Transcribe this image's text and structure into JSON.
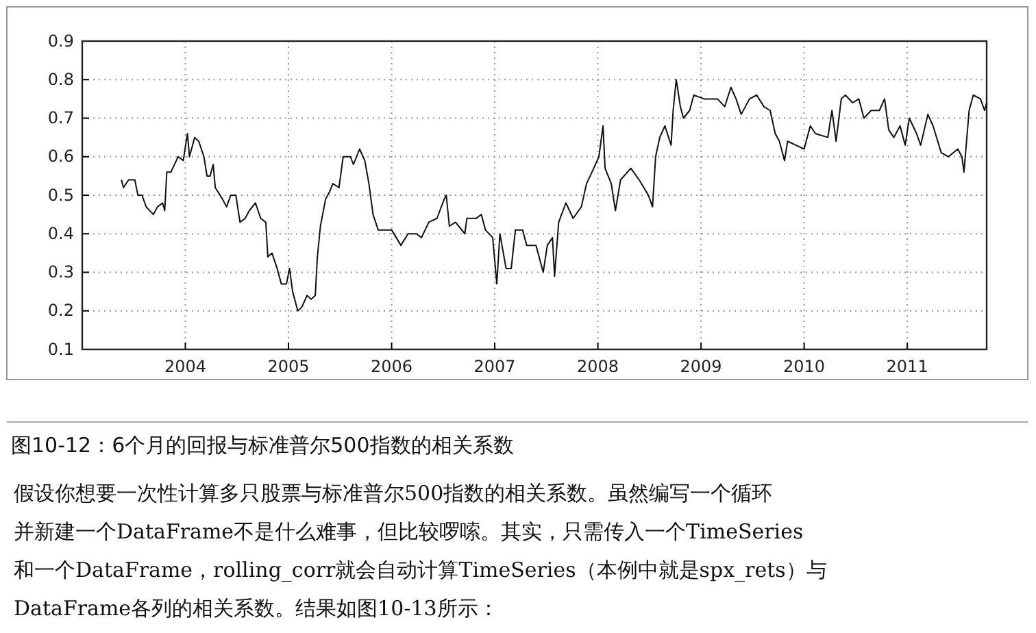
{
  "chart_data": {
    "type": "line",
    "x": [
      2003.38,
      2003.4,
      2003.45,
      2003.51,
      2003.54,
      2003.58,
      2003.62,
      2003.69,
      2003.73,
      2003.78,
      2003.8,
      2003.82,
      2003.86,
      2003.93,
      2003.98,
      2004.02,
      2004.04,
      2004.09,
      2004.13,
      2004.18,
      2004.21,
      2004.24,
      2004.27,
      2004.29,
      2004.36,
      2004.4,
      2004.44,
      2004.49,
      2004.53,
      2004.58,
      2004.62,
      2004.68,
      2004.73,
      2004.78,
      2004.8,
      2004.84,
      2004.89,
      2004.93,
      2004.98,
      2005.01,
      2005.04,
      2005.09,
      2005.13,
      2005.18,
      2005.22,
      2005.26,
      2005.28,
      2005.31,
      2005.36,
      2005.4,
      2005.43,
      2005.49,
      2005.53,
      2005.6,
      2005.63,
      2005.69,
      2005.74,
      2005.78,
      2005.82,
      2005.87,
      2006.0,
      2006.09,
      2006.16,
      2006.24,
      2006.29,
      2006.36,
      2006.44,
      2006.51,
      2006.53,
      2006.56,
      2006.62,
      2006.71,
      2006.73,
      2006.82,
      2006.87,
      2006.91,
      2006.98,
      2007.02,
      2007.05,
      2007.11,
      2007.16,
      2007.2,
      2007.27,
      2007.31,
      2007.4,
      2007.47,
      2007.51,
      2007.56,
      2007.58,
      2007.62,
      2007.69,
      2007.76,
      2007.84,
      2007.89,
      2007.96,
      2008.01,
      2008.05,
      2008.07,
      2008.13,
      2008.17,
      2008.22,
      2008.32,
      2008.4,
      2008.49,
      2008.53,
      2008.56,
      2008.6,
      2008.65,
      2008.71,
      2008.73,
      2008.76,
      2008.8,
      2008.83,
      2008.89,
      2008.93,
      2009.03,
      2009.16,
      2009.23,
      2009.29,
      2009.34,
      2009.39,
      2009.47,
      2009.54,
      2009.61,
      2009.67,
      2009.72,
      2009.76,
      2009.81,
      2009.84,
      2009.92,
      2010.0,
      2010.06,
      2010.11,
      2010.23,
      2010.27,
      2010.31,
      2010.36,
      2010.4,
      2010.47,
      2010.53,
      2010.58,
      2010.65,
      2010.73,
      2010.78,
      2010.82,
      2010.87,
      2010.93,
      2010.98,
      2011.02,
      2011.09,
      2011.13,
      2011.2,
      2011.25,
      2011.33,
      2011.4,
      2011.49,
      2011.53,
      2011.55,
      2011.6,
      2011.64,
      2011.71,
      2011.75,
      2011.77
    ],
    "series": [
      {
        "color": "#111111",
        "values": [
          0.54,
          0.52,
          0.54,
          0.54,
          0.5,
          0.5,
          0.47,
          0.45,
          0.47,
          0.48,
          0.46,
          0.56,
          0.56,
          0.6,
          0.59,
          0.66,
          0.6,
          0.65,
          0.64,
          0.6,
          0.55,
          0.55,
          0.58,
          0.52,
          0.49,
          0.47,
          0.5,
          0.5,
          0.43,
          0.44,
          0.46,
          0.48,
          0.44,
          0.43,
          0.34,
          0.35,
          0.31,
          0.27,
          0.27,
          0.31,
          0.25,
          0.2,
          0.21,
          0.24,
          0.23,
          0.24,
          0.34,
          0.42,
          0.49,
          0.51,
          0.53,
          0.52,
          0.6,
          0.6,
          0.58,
          0.62,
          0.59,
          0.53,
          0.45,
          0.41,
          0.41,
          0.37,
          0.4,
          0.4,
          0.39,
          0.43,
          0.44,
          0.49,
          0.5,
          0.42,
          0.43,
          0.4,
          0.44,
          0.44,
          0.45,
          0.41,
          0.39,
          0.27,
          0.4,
          0.31,
          0.31,
          0.41,
          0.41,
          0.37,
          0.37,
          0.3,
          0.37,
          0.39,
          0.29,
          0.43,
          0.48,
          0.44,
          0.47,
          0.53,
          0.57,
          0.6,
          0.68,
          0.57,
          0.53,
          0.46,
          0.54,
          0.57,
          0.54,
          0.5,
          0.47,
          0.6,
          0.65,
          0.68,
          0.63,
          0.72,
          0.8,
          0.73,
          0.7,
          0.72,
          0.76,
          0.75,
          0.75,
          0.73,
          0.78,
          0.75,
          0.71,
          0.75,
          0.76,
          0.73,
          0.72,
          0.66,
          0.64,
          0.59,
          0.64,
          0.63,
          0.62,
          0.68,
          0.66,
          0.65,
          0.72,
          0.64,
          0.75,
          0.76,
          0.74,
          0.75,
          0.7,
          0.72,
          0.72,
          0.75,
          0.67,
          0.65,
          0.68,
          0.63,
          0.7,
          0.66,
          0.63,
          0.71,
          0.68,
          0.61,
          0.6,
          0.62,
          0.6,
          0.56,
          0.72,
          0.76,
          0.75,
          0.72,
          0.74
        ]
      }
    ],
    "xlim": [
      2003.0,
      2011.77
    ],
    "xticks": [
      2004,
      2005,
      2006,
      2007,
      2008,
      2009,
      2010,
      2011
    ],
    "ylim": [
      0.1,
      0.9
    ],
    "yticks": [
      0.1,
      0.2,
      0.3,
      0.4,
      0.5,
      0.6,
      0.7,
      0.8,
      0.9
    ],
    "grid": true,
    "annotations": [
      "图10-12：6个月的回报与标准普尔500指数的相关系数",
      "假设你想要一次性计算多只股票与标准普尔500指数的相关系数。虽然编写一个循环",
      "并新建一个DataFrame不是什么难事，但比较啰嗦。其实，只需传入一个TimeSeries",
      "和一个DataFrame，rolling_corr就会自动计算TimeSeries（本例中就是spx_rets）与",
      "DataFrame各列的相关系数。结果如图10-13所示："
    ]
  }
}
